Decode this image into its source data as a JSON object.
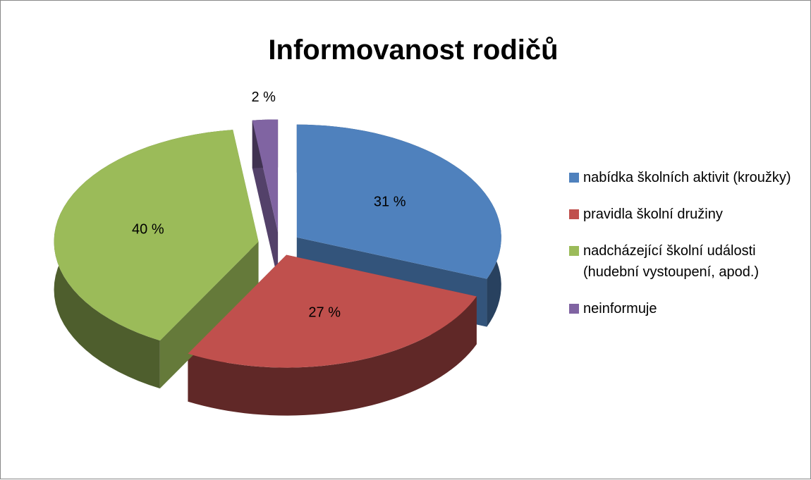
{
  "chart_data": {
    "type": "pie",
    "title": "Informovanost rodičů",
    "categories": [
      "nabídka školních aktivit (kroužky)",
      "pravidla školní družiny",
      "nadcházející školní události (hudební vystoupení, apod.)",
      "neinformuje"
    ],
    "values": [
      31,
      27,
      40,
      2
    ],
    "value_labels": [
      "31 %",
      "27 %",
      "40 %",
      "2 %"
    ],
    "colors": [
      "#4f81bd",
      "#c0504d",
      "#9bbb59",
      "#8064a2"
    ],
    "legend": "right"
  }
}
